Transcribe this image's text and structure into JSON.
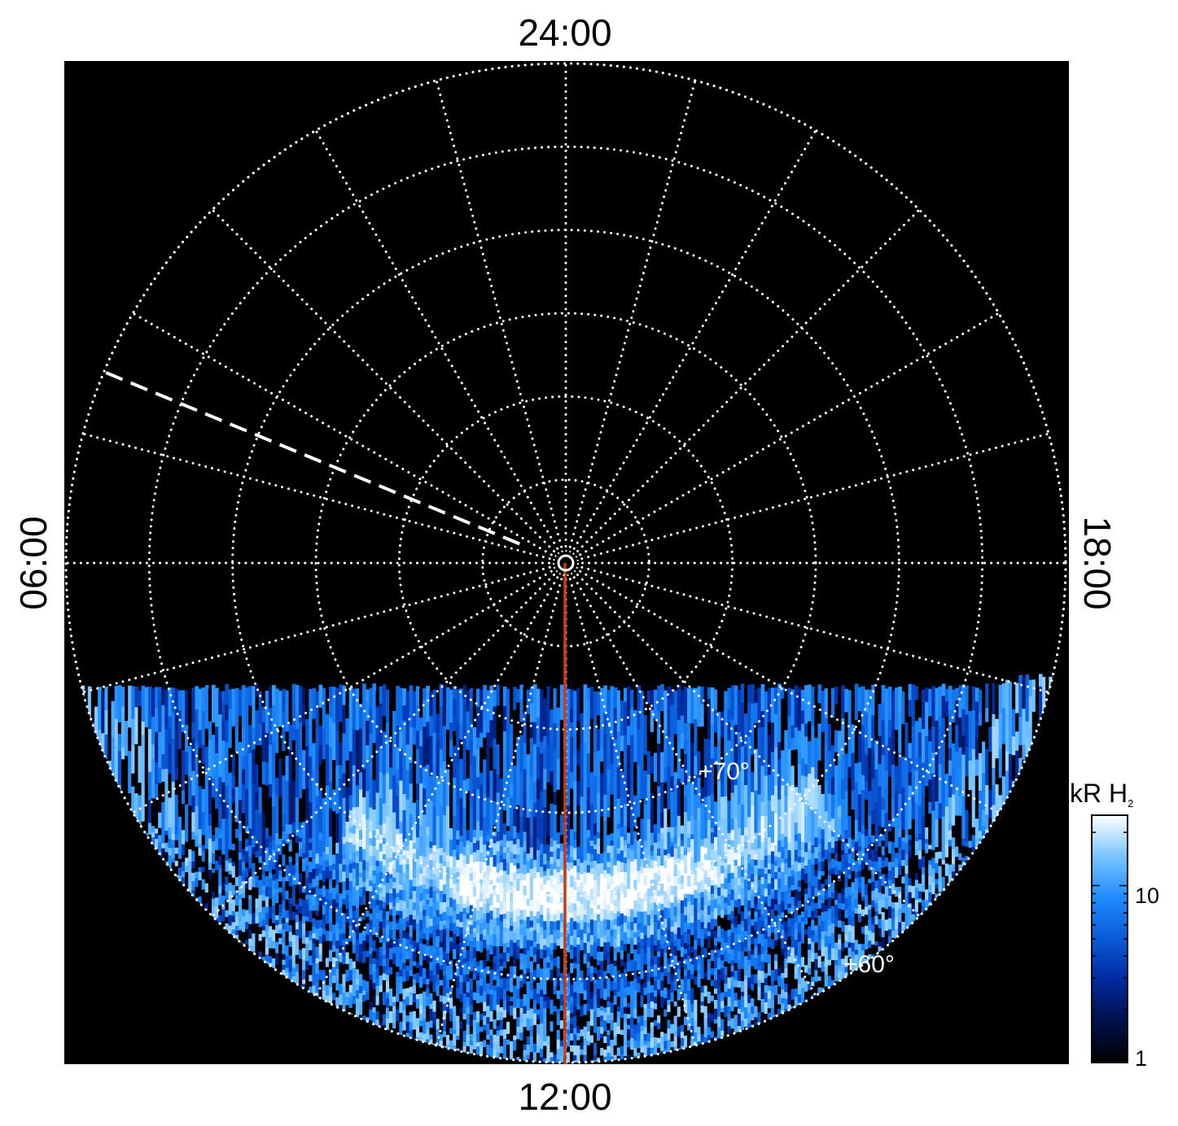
{
  "chart_data": {
    "type": "heatmap",
    "projection": "polar",
    "local_time_labels": {
      "top": "24:00",
      "bottom": "12:00",
      "left": "06:00",
      "right": "18:00"
    },
    "latitude_labels": [
      {
        "text": "+70°",
        "latitude": 70
      },
      {
        "text": "+60°",
        "latitude": 60
      }
    ],
    "latitude_circles": [
      85,
      80,
      75,
      70,
      65,
      60
    ],
    "meridian_step_hours": 1,
    "grid": true,
    "grid_color": "#ffffff",
    "background_color": "#000000",
    "highlight_meridian": {
      "local_time": "12:00",
      "color": "#d03a10"
    },
    "dashed_marker": {
      "local_time_hours": 4.5,
      "latitude_range": [
        60,
        87
      ]
    },
    "colorbar": {
      "label": "kR H",
      "label_subscript": "2",
      "scale": "log",
      "range": [
        1,
        25
      ],
      "tick_labels": [
        "1",
        "10"
      ],
      "tick_values": [
        1,
        10
      ],
      "placement": "right",
      "colors": [
        "#000000",
        "#00104a",
        "#002a9e",
        "#0a5ad8",
        "#1e8cff",
        "#78c4ff",
        "#ffffff"
      ]
    },
    "emission_features": [
      {
        "name": "auroral arc",
        "latitude_range": [
          67,
          73
        ],
        "local_time_range": [
          9.3,
          15.2
        ],
        "intensity_kR": 14
      }
    ]
  }
}
